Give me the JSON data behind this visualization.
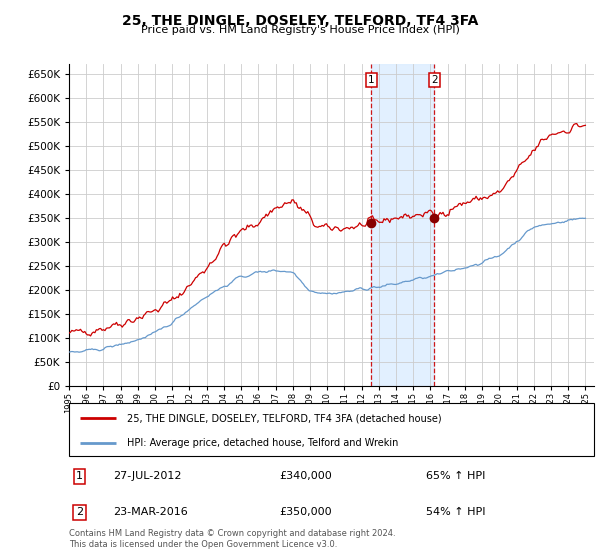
{
  "title": "25, THE DINGLE, DOSELEY, TELFORD, TF4 3FA",
  "subtitle": "Price paid vs. HM Land Registry's House Price Index (HPI)",
  "legend_line1": "25, THE DINGLE, DOSELEY, TELFORD, TF4 3FA (detached house)",
  "legend_line2": "HPI: Average price, detached house, Telford and Wrekin",
  "transaction1_date": "27-JUL-2012",
  "transaction1_price": 340000,
  "transaction1_pct": "65% ↑ HPI",
  "transaction2_date": "23-MAR-2016",
  "transaction2_price": 350000,
  "transaction2_pct": "54% ↑ HPI",
  "footer": "Contains HM Land Registry data © Crown copyright and database right 2024.\nThis data is licensed under the Open Government Licence v3.0.",
  "ylim": [
    0,
    670000
  ],
  "yticks": [
    0,
    50000,
    100000,
    150000,
    200000,
    250000,
    300000,
    350000,
    400000,
    450000,
    500000,
    550000,
    600000,
    650000
  ],
  "red_line_color": "#cc0000",
  "blue_line_color": "#6699cc",
  "marker_color": "#880000",
  "vline_color": "#cc0000",
  "shade_color": "#ddeeff",
  "grid_color": "#cccccc",
  "bg_color": "#ffffff",
  "transaction1_x": 2012.57,
  "transaction2_x": 2016.22
}
